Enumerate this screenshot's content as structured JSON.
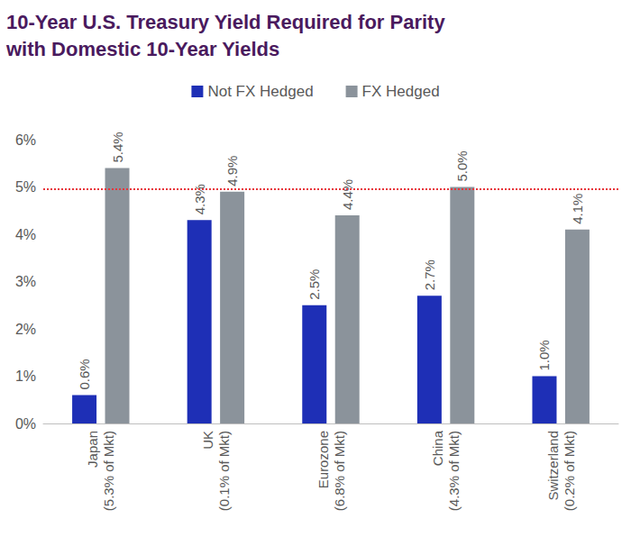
{
  "chart_data": {
    "type": "bar",
    "title": "10-Year U.S. Treasury Yield Required for Parity\nwith Domestic 10-Year Yields",
    "categories": [
      "Japan\n(5.3% of Mkt)",
      "UK\n(0.1% of Mkt)",
      "Eurozone\n(6.8% of Mkt)",
      "China\n(4.3% of Mkt)",
      "Switzerland\n(0.2% of Mkt)"
    ],
    "series": [
      {
        "name": "Not FX Hedged",
        "color": "#1e2fb6",
        "values": [
          0.6,
          4.3,
          2.5,
          2.7,
          1.0
        ],
        "value_labels": [
          "0.6%",
          "4.3%",
          "2.5%",
          "2.7%",
          "1.0%"
        ]
      },
      {
        "name": "FX Hedged",
        "color": "#8b939b",
        "values": [
          5.4,
          4.9,
          4.4,
          5.0,
          4.1
        ],
        "value_labels": [
          "5.4%",
          "4.9%",
          "4.4%",
          "5.0%",
          "4.1%"
        ]
      }
    ],
    "ylim": [
      0,
      6
    ],
    "yticks": [
      {
        "value": 0,
        "label": "0%"
      },
      {
        "value": 1,
        "label": "1%"
      },
      {
        "value": 2,
        "label": "2%"
      },
      {
        "value": 3,
        "label": "3%"
      },
      {
        "value": 4,
        "label": "4%"
      },
      {
        "value": 5,
        "label": "5%"
      },
      {
        "value": 6,
        "label": "6%"
      }
    ],
    "reference_line": {
      "value": 4.95,
      "color": "#e8353b",
      "line_style": "dotted"
    },
    "grid": false,
    "legend": "top",
    "data_labels": true
  }
}
